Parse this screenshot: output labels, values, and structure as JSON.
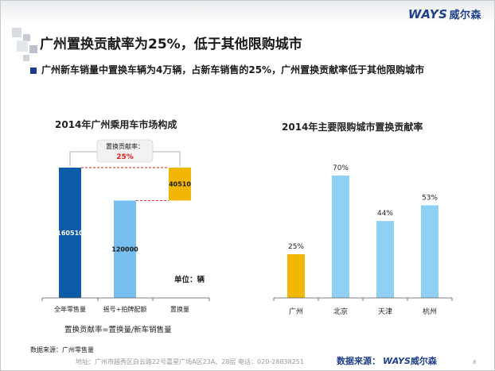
{
  "brand": {
    "logo": "WAYS",
    "name_cn": "威尔森"
  },
  "title": "广州置换贡献率为25%，低于其他限购城市",
  "bullet": "广州新车销量中置换车辆为4万辆，占新车销售的25%，广州置换贡献率低于其他限购城市",
  "colors": {
    "dark_blue": "#0d5aa7",
    "light_blue": "#77bff0",
    "sky_blue": "#8fd1f5",
    "gold": "#f2b705",
    "red": "#e0201b",
    "brand_navy": "#1f3f8a"
  },
  "chart_data": [
    {
      "type": "bar",
      "subtype": "waterfall",
      "title": "2014年广州乘用车市场构成",
      "categories": [
        "全年零售量",
        "摇号+拍牌配额",
        "置换量"
      ],
      "values": [
        160510,
        120000,
        40510
      ],
      "value_labels": [
        "160510",
        "120000",
        "40510"
      ],
      "unit_label": "单位：辆",
      "formula": "置换贡献率=置换量/新车销售量",
      "annotation": {
        "label": "置换贡献率：",
        "value": "25%"
      }
    },
    {
      "type": "bar",
      "title": "2014年主要限购城市置换贡献率",
      "categories": [
        "广州",
        "北京",
        "天津",
        "杭州"
      ],
      "values": [
        25,
        70,
        44,
        53
      ],
      "value_labels": [
        "25%",
        "70%",
        "44%",
        "53%"
      ],
      "ylim": [
        0,
        80
      ]
    }
  ],
  "footer": {
    "source_left": "数据来源：广州零售量",
    "address": "地址：广州市越秀区白云路22号嘉星广场A区23A、28层  电话：020-28838251",
    "source_brand_label": "数据来源：",
    "page": "8"
  }
}
